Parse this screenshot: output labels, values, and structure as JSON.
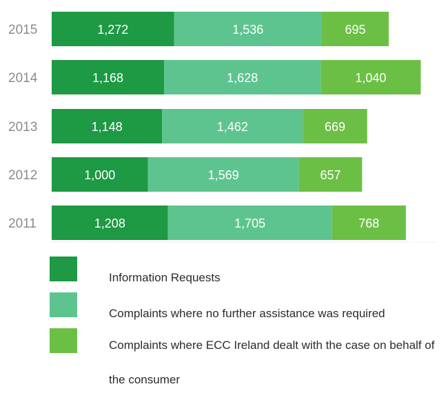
{
  "chart_data": {
    "type": "bar",
    "orientation": "horizontal",
    "stacked": true,
    "categories": [
      "2015",
      "2014",
      "2013",
      "2012",
      "2011"
    ],
    "series": [
      {
        "name": "Information Requests",
        "color": "#1e9944",
        "values": [
          1272,
          1168,
          1148,
          1000,
          1208
        ],
        "labels": [
          "1,272",
          "1,168",
          "1,148",
          "1,000",
          "1,208"
        ]
      },
      {
        "name": "Complaints where no further assistance was required",
        "color": "#5ec48f",
        "values": [
          1536,
          1628,
          1462,
          1569,
          1705
        ],
        "labels": [
          "1,536",
          "1,628",
          "1,462",
          "1,569",
          "1,705"
        ]
      },
      {
        "name": "Complaints where ECC Ireland dealt with the case on behalf of the consumer",
        "color": "#6cbf45",
        "values": [
          695,
          1040,
          669,
          657,
          768
        ],
        "labels": [
          "695",
          "1,040",
          "669",
          "657",
          "768"
        ]
      }
    ],
    "title": "",
    "xlabel": "",
    "ylabel": "",
    "xlim": [
      0,
      4000
    ],
    "grid": false,
    "legend_position": "bottom"
  },
  "legend": {
    "items": [
      {
        "label": "Information Requests",
        "color": "#1e9944"
      },
      {
        "label": "Complaints where no further assistance was required",
        "color": "#5ec48f"
      },
      {
        "label": "Complaints where ECC Ireland dealt with the case on behalf of the consumer",
        "color": "#6cbf45"
      }
    ]
  }
}
